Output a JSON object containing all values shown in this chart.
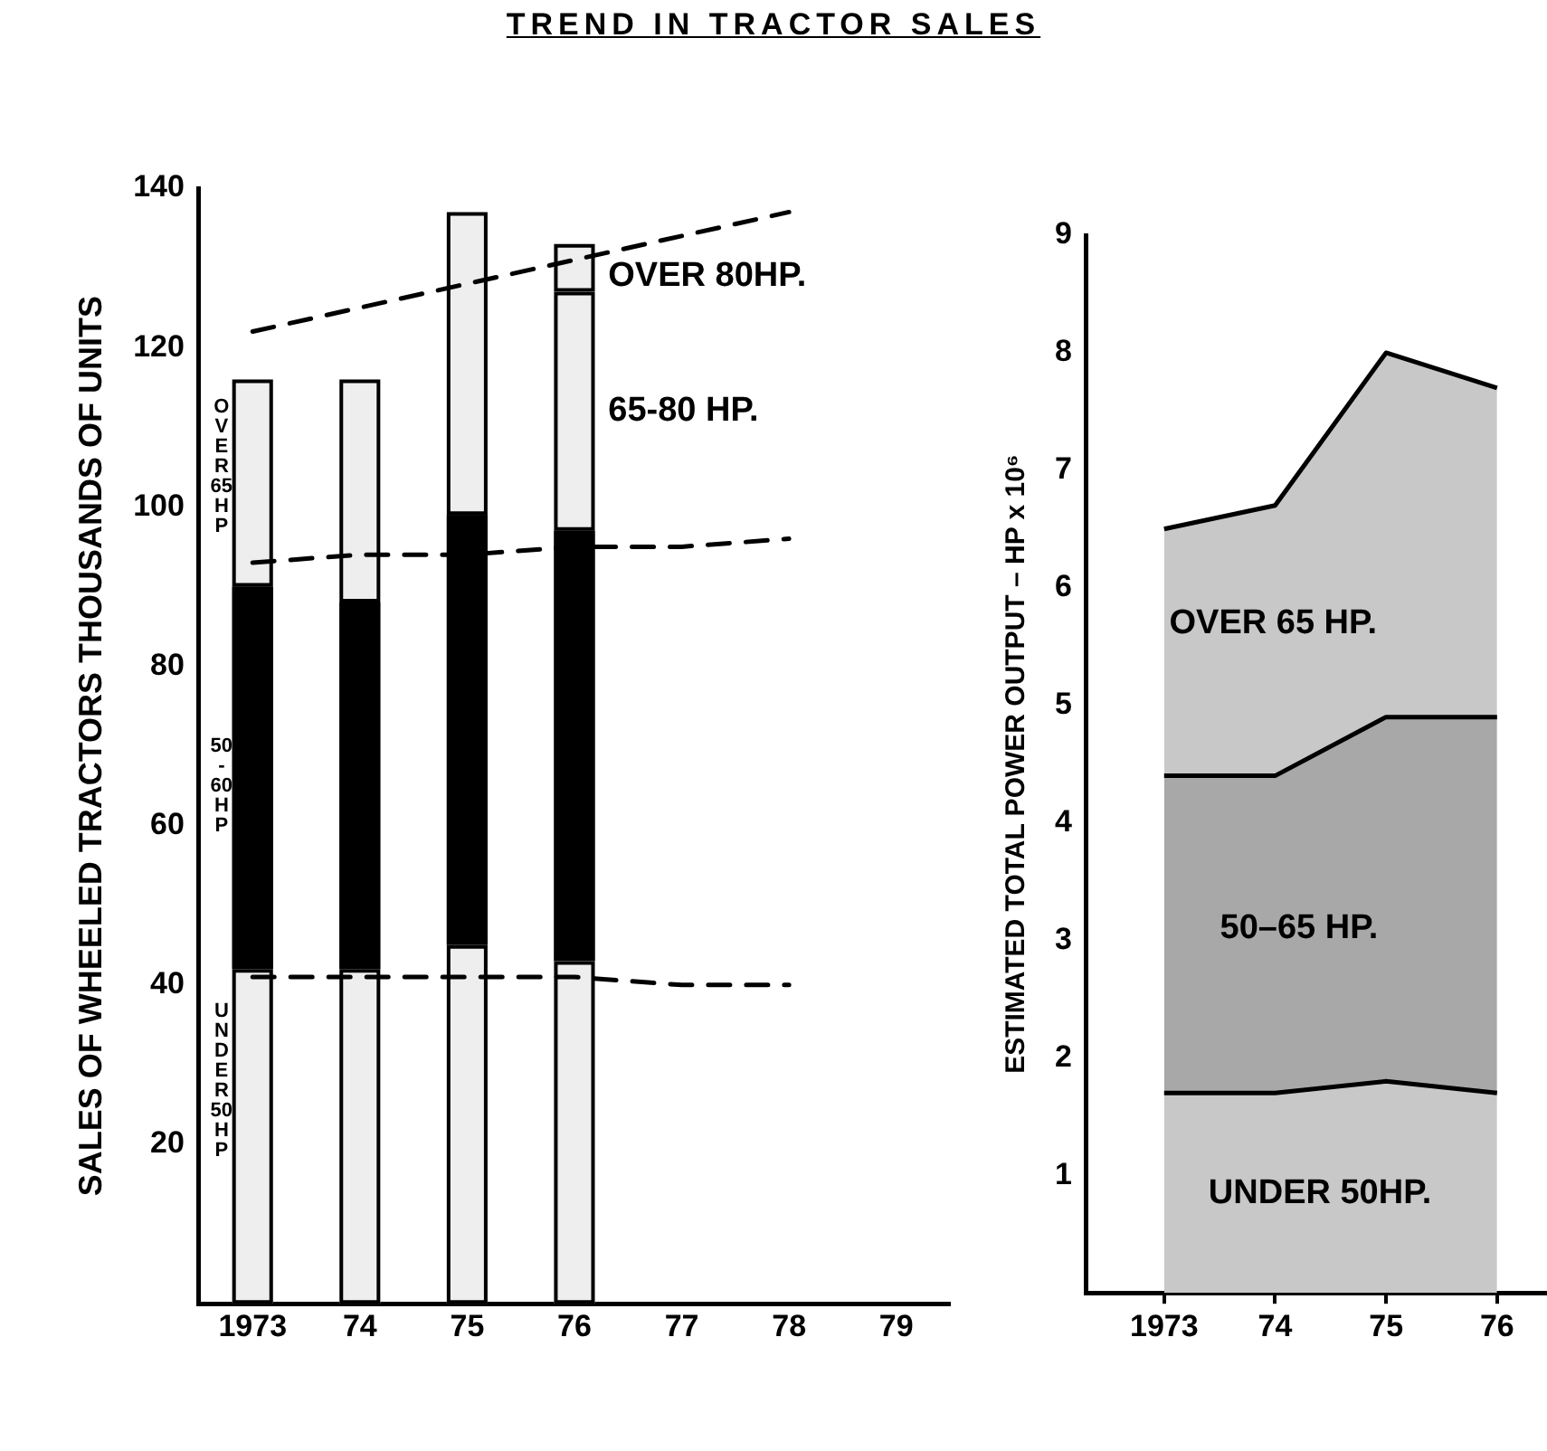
{
  "chart_data": [
    {
      "type": "bar",
      "title": "TREND IN TRACTOR SALES",
      "ylabel": "SALES OF WHEELED TRACTORS THOUSANDS OF UNITS",
      "categories": [
        "1973",
        "74",
        "75",
        "76",
        "77",
        "78",
        "79"
      ],
      "stacked": true,
      "ylim": [
        0,
        140
      ],
      "yticks": [
        20,
        40,
        60,
        80,
        100,
        120,
        140
      ],
      "grid": false,
      "legend": false,
      "series": [
        {
          "color": "#eeeeee",
          "values": [
            42,
            42,
            45,
            43,
            null,
            null,
            null
          ]
        },
        {
          "color": "#000000",
          "values": [
            48,
            46,
            54,
            54,
            null,
            null,
            null
          ]
        },
        {
          "color": "#eeeeee",
          "values": [
            26,
            28,
            38,
            null,
            null,
            null,
            null
          ]
        },
        {
          "color": "#eeeeee",
          "values": [
            null,
            null,
            null,
            30,
            null,
            null,
            null
          ]
        },
        {
          "color": "#eeeeee",
          "values": [
            null,
            null,
            null,
            6,
            null,
            null,
            null
          ]
        },
        {
          "type": "line",
          "line_style": "dashed",
          "color": "#000000",
          "values": [
            122,
            125,
            128,
            131,
            134,
            137,
            null
          ]
        },
        {
          "type": "line",
          "line_style": "dashed",
          "color": "#000000",
          "values": [
            93,
            94,
            94,
            95,
            95,
            96,
            null
          ]
        },
        {
          "type": "line",
          "line_style": "dashed",
          "color": "#000000",
          "values": [
            41,
            41,
            41,
            41,
            40,
            40,
            null
          ]
        }
      ],
      "annotations": [
        "OVER 65 HP",
        "50-60 HP",
        "UNDER 50 HP",
        "OVER 80HP.",
        "65-80 HP."
      ]
    },
    {
      "type": "area",
      "ylabel": "ESTIMATED TOTAL POWER OUTPUT – HP x 10⁶",
      "x": [
        1973,
        1974,
        1975,
        1976
      ],
      "xlim": [
        1972.3,
        1976.45
      ],
      "xticks": [
        {
          "value": 1973,
          "label": "1973"
        },
        {
          "value": 1974,
          "label": "74"
        },
        {
          "value": 1975,
          "label": "75"
        },
        {
          "value": 1976,
          "label": "76"
        }
      ],
      "ylim": [
        0,
        9
      ],
      "yticks": [
        1,
        2,
        3,
        4,
        5,
        6,
        7,
        8,
        9
      ],
      "stacked": true,
      "grid": false,
      "legend": false,
      "series": [
        {
          "color": "#c8c8c8",
          "values": [
            1.7,
            1.7,
            1.8,
            1.7
          ]
        },
        {
          "color": "#a8a8a8",
          "values": [
            2.7,
            2.7,
            3.1,
            3.2
          ]
        },
        {
          "color": "#c8c8c8",
          "values": [
            2.1,
            2.3,
            3.1,
            2.8
          ]
        }
      ],
      "annotations": [
        "OVER 65 HP.",
        "50–65 HP.",
        "UNDER 50HP."
      ]
    }
  ]
}
